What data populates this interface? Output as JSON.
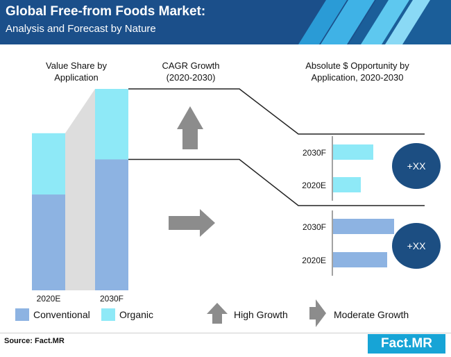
{
  "header": {
    "title": "Global Free-from Foods Market:",
    "subtitle": "Analysis and Forecast by Nature"
  },
  "columns": {
    "value_share": "Value Share by\nApplication",
    "cagr": "CAGR Growth\n(2020-2030)",
    "opportunity": "Absolute $ Opportunity by\nApplication, 2020-2030"
  },
  "circles": [
    "+XX",
    "+XX"
  ],
  "legend": {
    "conventional": "Conventional",
    "organic": "Organic",
    "high_growth": "High Growth",
    "moderate_growth": "Moderate Growth"
  },
  "source": "Source: Fact.MR",
  "logo": "Fact.MR",
  "colors": {
    "header": "#1b4f8a",
    "conventional": "#8db3e2",
    "organic": "#8ee9f7",
    "arrow": "#8c8c8c",
    "circle": "#1c4e82"
  },
  "chart_data": [
    {
      "type": "bar",
      "title": "Value Share by Application",
      "categories": [
        "2020E",
        "2030F"
      ],
      "stacked": true,
      "series": [
        {
          "name": "Conventional",
          "values": [
            61,
            65
          ]
        },
        {
          "name": "Organic",
          "values": [
            39,
            35
          ]
        }
      ],
      "ylim": [
        0,
        100
      ]
    },
    {
      "type": "bar",
      "orientation": "horizontal",
      "segment": "Organic",
      "growth": "High Growth",
      "categories": [
        "2030F",
        "2020E"
      ],
      "values": [
        58,
        40
      ],
      "xlim": [
        0,
        100
      ],
      "annotation": "+XX"
    },
    {
      "type": "bar",
      "orientation": "horizontal",
      "segment": "Conventional",
      "growth": "Moderate Growth",
      "categories": [
        "2030F",
        "2020E"
      ],
      "values": [
        88,
        78
      ],
      "xlim": [
        0,
        100
      ],
      "annotation": "+XX"
    }
  ]
}
